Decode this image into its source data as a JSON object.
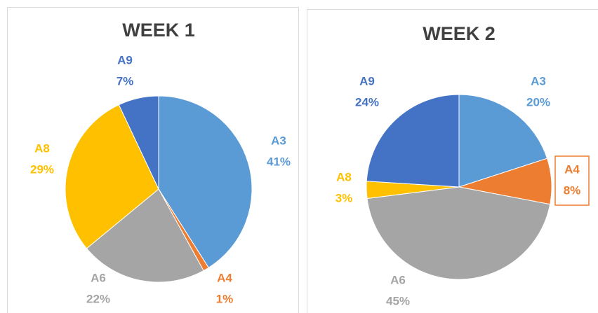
{
  "chart_data": [
    {
      "type": "pie",
      "title": "WEEK 1",
      "categories": [
        "A3",
        "A4",
        "A6",
        "A8",
        "A9"
      ],
      "values": [
        41,
        1,
        22,
        29,
        7
      ],
      "value_labels": [
        "41%",
        "1%",
        "22%",
        "29%",
        "7%"
      ],
      "colors": [
        "#5b9bd5",
        "#ed7d31",
        "#a5a5a5",
        "#ffc000",
        "#4472c4"
      ]
    },
    {
      "type": "pie",
      "title": "WEEK 2",
      "categories": [
        "A3",
        "A4",
        "A6",
        "A8",
        "A9"
      ],
      "values": [
        20,
        8,
        45,
        3,
        24
      ],
      "value_labels": [
        "20%",
        "8%",
        "45%",
        "3%",
        "24%"
      ],
      "colors": [
        "#5b9bd5",
        "#ed7d31",
        "#a5a5a5",
        "#ffc000",
        "#4472c4"
      ]
    }
  ]
}
